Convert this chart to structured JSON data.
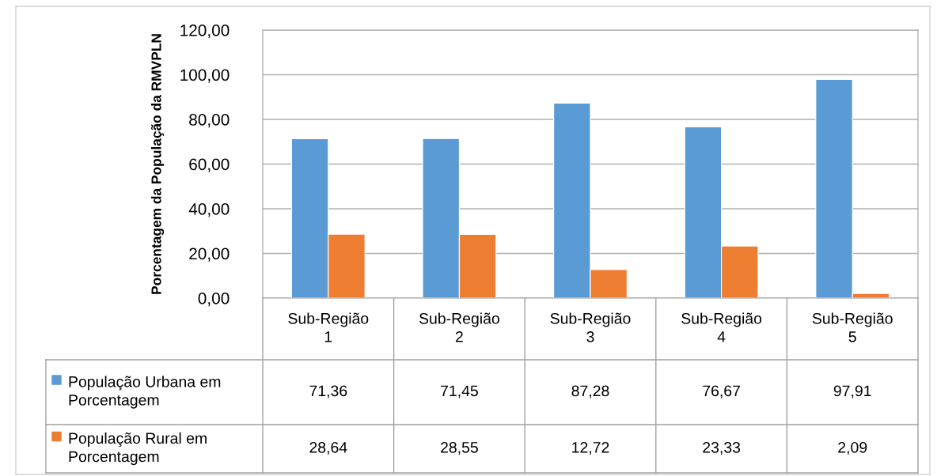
{
  "chart_data": {
    "type": "bar",
    "ylabel": "Porcentagem da População da RMVPLN",
    "categories": [
      "Sub-Região 1",
      "Sub-Região 2",
      "Sub-Região 3",
      "Sub-Região 4",
      "Sub-Região 5"
    ],
    "series": [
      {
        "name": "População Urbana em Porcentagem",
        "color": "#5b9bd5",
        "values": [
          71.36,
          71.45,
          87.28,
          76.67,
          97.91
        ],
        "value_labels": [
          "71,36",
          "71,45",
          "87,28",
          "76,67",
          "97,91"
        ]
      },
      {
        "name": "População Rural em Porcentagem",
        "color": "#ed7d31",
        "values": [
          28.64,
          28.55,
          12.72,
          23.33,
          2.09
        ],
        "value_labels": [
          "28,64",
          "28,55",
          "12,72",
          "23,33",
          "2,09"
        ]
      }
    ],
    "ylim": [
      0,
      120
    ],
    "yticks": [
      {
        "value": 0,
        "label": "0,00"
      },
      {
        "value": 20,
        "label": "20,00"
      },
      {
        "value": 40,
        "label": "40,00"
      },
      {
        "value": 60,
        "label": "60,00"
      },
      {
        "value": 80,
        "label": "80,00"
      },
      {
        "value": 100,
        "label": "100,00"
      },
      {
        "value": 120,
        "label": "120,00"
      }
    ],
    "grid": "y",
    "legend": "bottom"
  }
}
